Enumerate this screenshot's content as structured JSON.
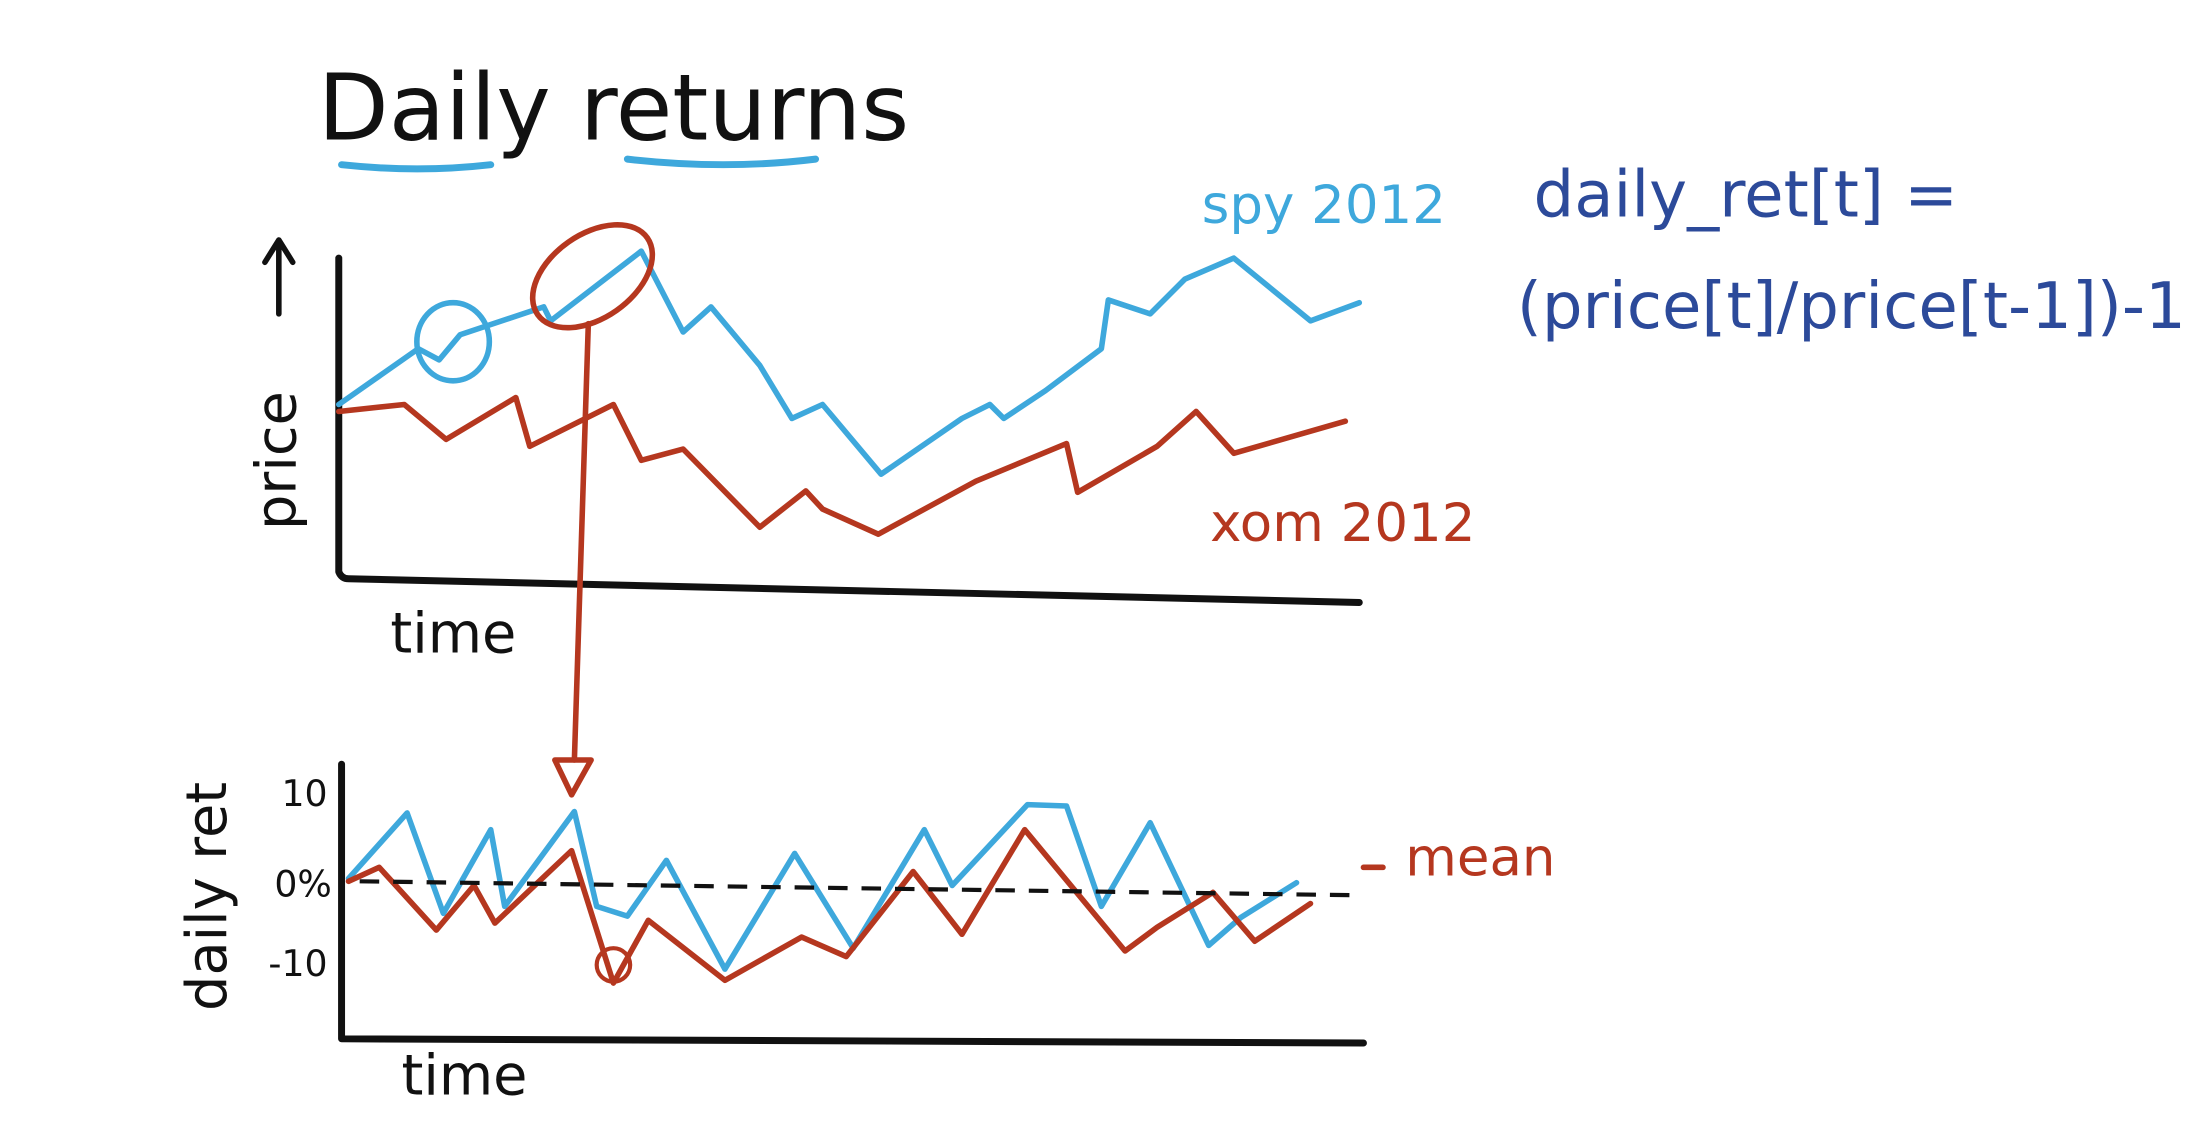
{
  "title": "Daily returns",
  "price_chart": {
    "y_label": "price",
    "x_label": "time",
    "series": [
      "spy 2012",
      "xom 2012"
    ]
  },
  "formula": {
    "lhs": "daily_ret[t] =",
    "rhs": "(price[t]/price[t-1])-1"
  },
  "returns_chart": {
    "y_label": "daily ret",
    "yticks": [
      "10",
      "0%",
      "-10"
    ],
    "x_label": "time",
    "mean_label": "mean"
  }
}
